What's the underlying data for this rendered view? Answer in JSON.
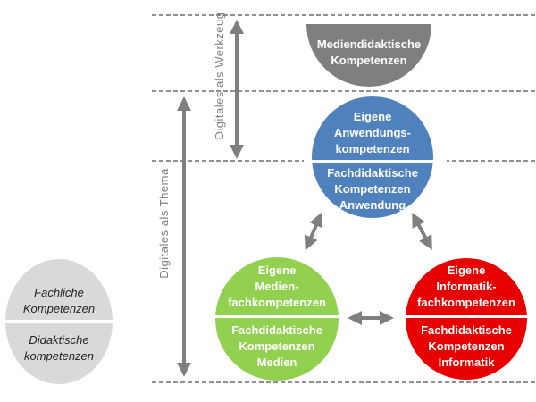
{
  "colors": {
    "gray": "#7f7f7f",
    "blue": "#4f81bd",
    "green": "#92d050",
    "red": "#e60000",
    "light_gray": "#d9d9d9"
  },
  "axes": {
    "werkzeug": "Digitales als Werkzeug",
    "thema": "Digitales als Thema"
  },
  "mediendidaktik": {
    "line1": "Mediendidaktische",
    "line2": "Kompetenzen"
  },
  "anwendung": {
    "top": [
      "Eigene",
      "Anwendungs-",
      "kompetenzen"
    ],
    "bottom": [
      "Fachdidaktische",
      "Kompetenzen",
      "Anwendung"
    ]
  },
  "medien": {
    "top": [
      "Eigene",
      "Medien-",
      "fachkompetenzen"
    ],
    "bottom": [
      "Fachdidaktische",
      "Kompetenzen",
      "Medien"
    ]
  },
  "informatik": {
    "top": [
      "Eigene",
      "Informatik-",
      "fachkompetenzen"
    ],
    "bottom": [
      "Fachdidaktische",
      "Kompetenzen",
      "Informatik"
    ]
  },
  "basis": {
    "top": [
      "Fachliche",
      "Kompetenzen"
    ],
    "bottom": [
      "Didaktische",
      "kompetenzen"
    ]
  }
}
